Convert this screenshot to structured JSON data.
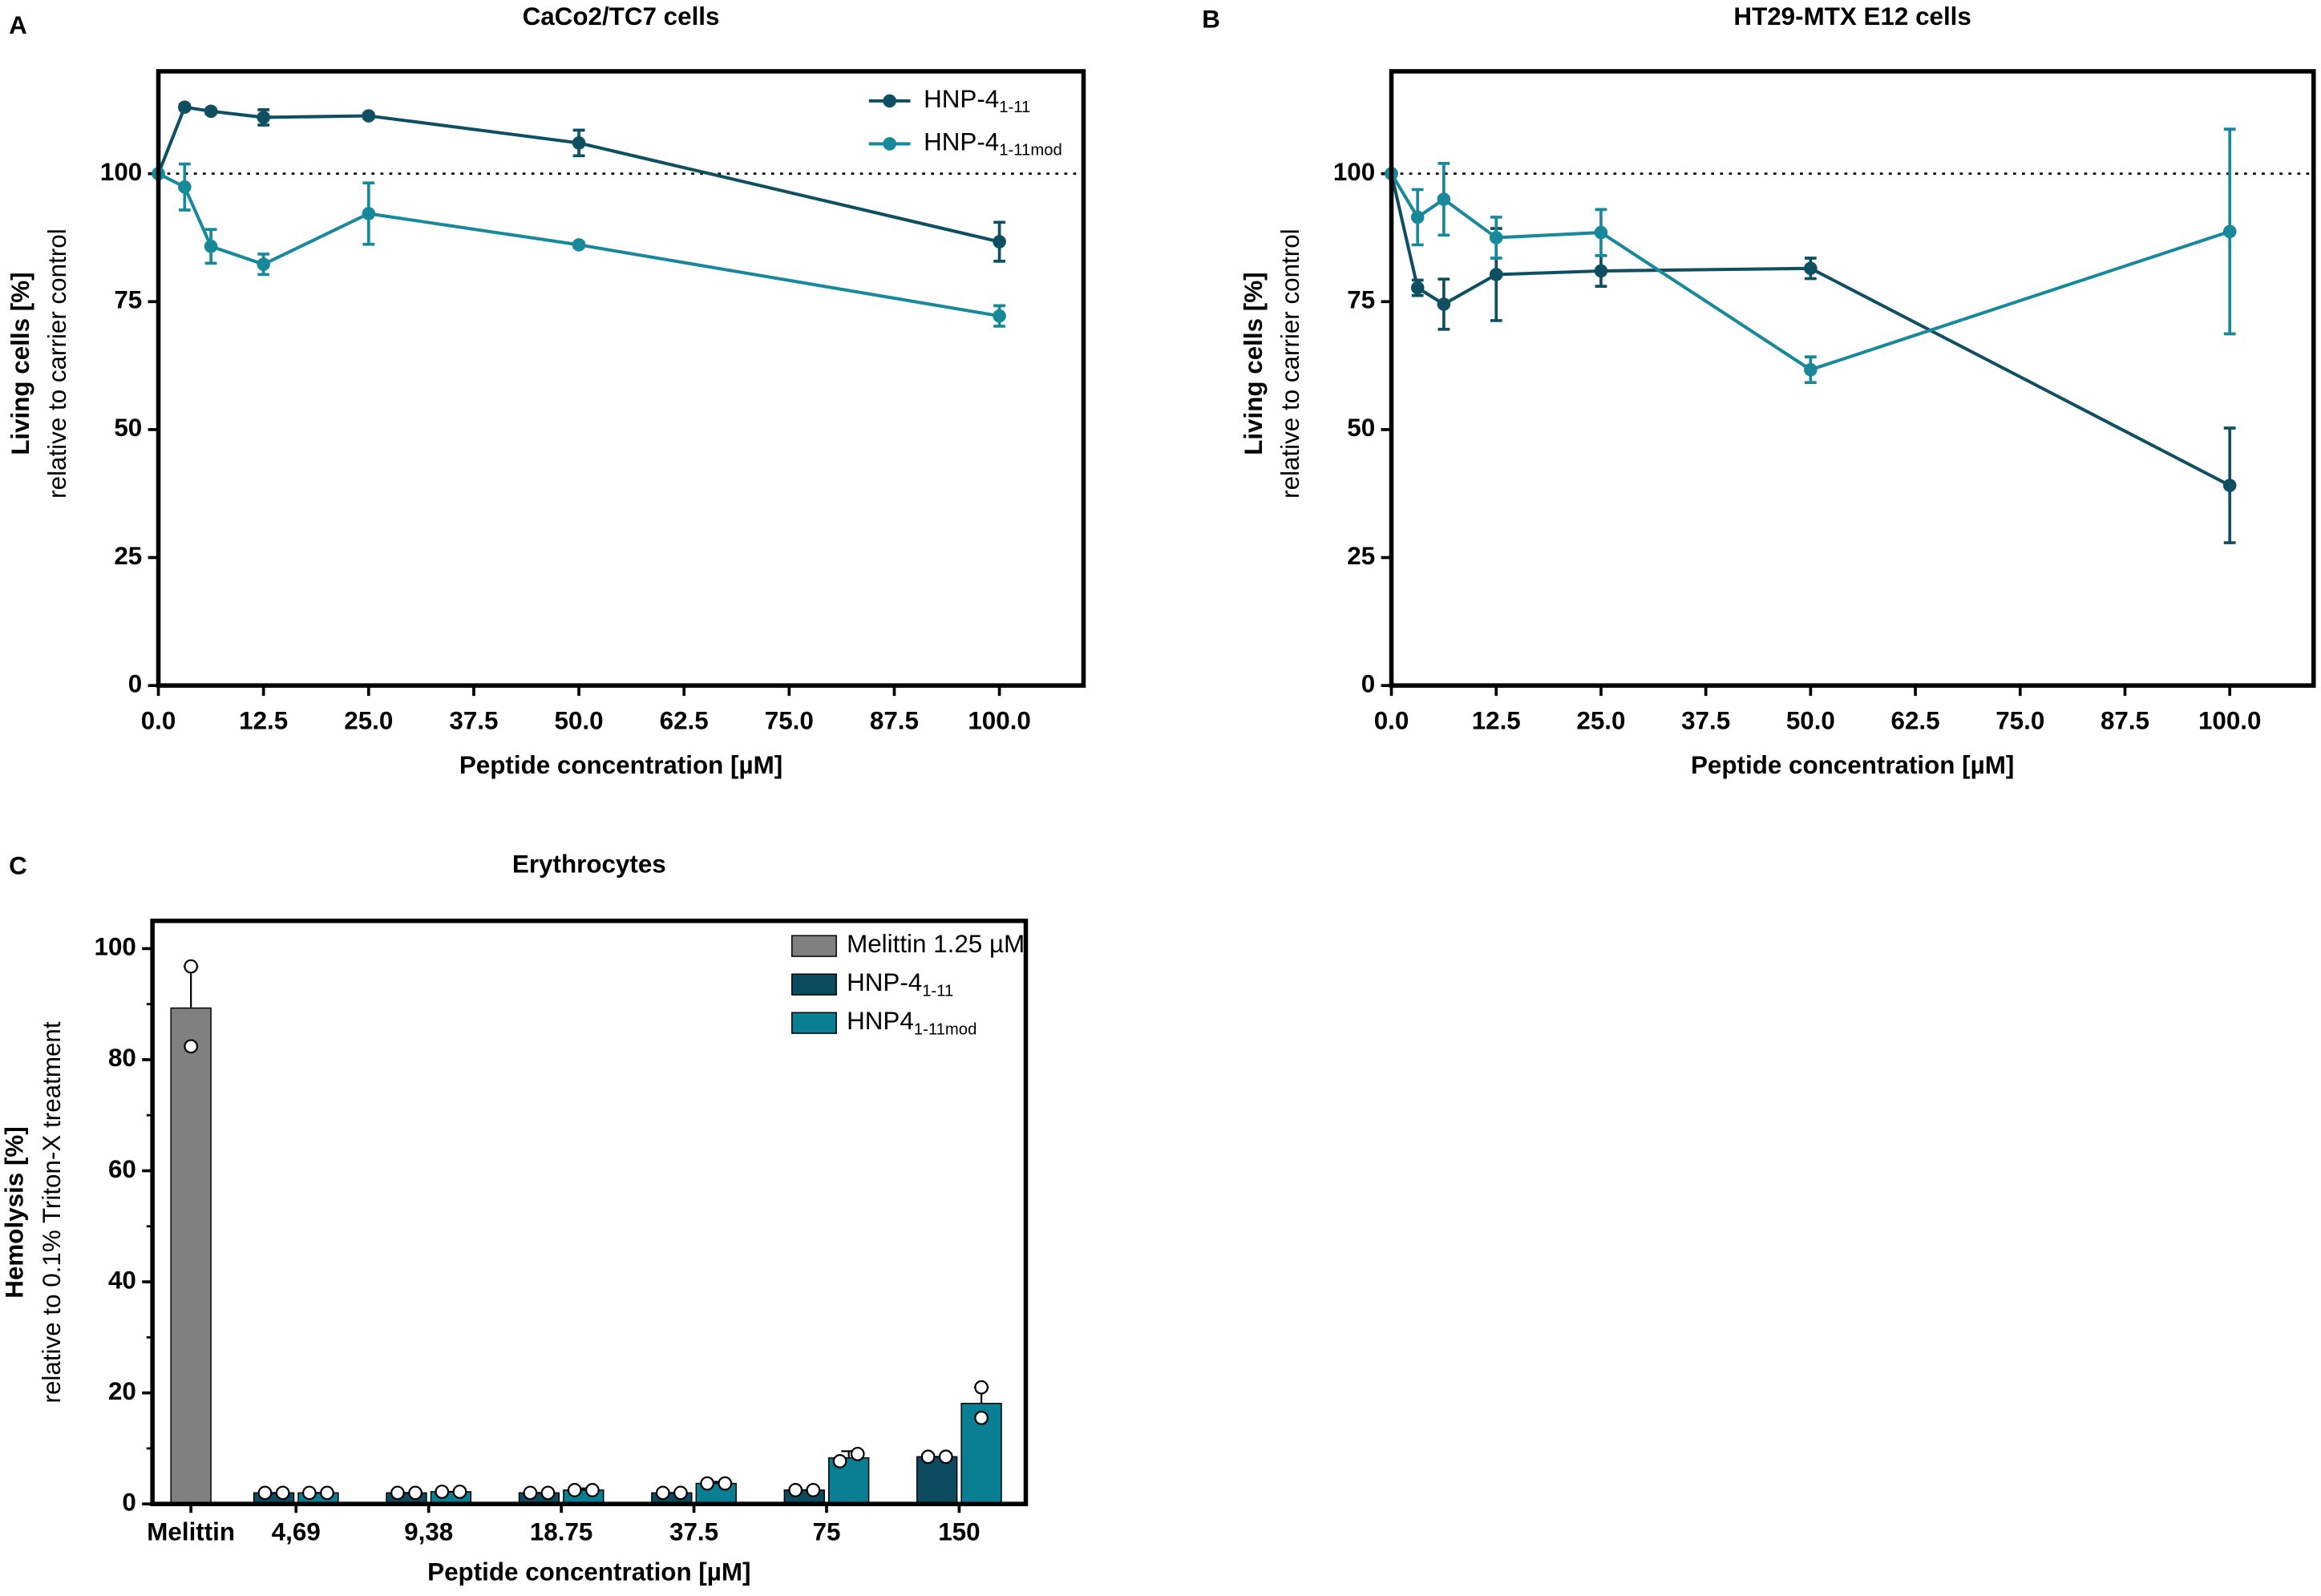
{
  "chart_data": [
    {
      "type": "line",
      "panel_label": "A",
      "title": "CaCo2/TC7 cells",
      "xlabel": "Peptide concentration [µM]",
      "ylabel": "Living cells [%]",
      "ylabel_sub": "relative to carrier control",
      "x": [
        0,
        3.125,
        6.25,
        12.5,
        25,
        50,
        100
      ],
      "series": [
        {
          "name": "HNP-4",
          "subscript": "1-11",
          "color": "#0f4f62",
          "values": [
            100,
            113,
            112.2,
            111,
            111.3,
            106,
            86.7
          ],
          "errors": [
            0,
            0.5,
            0.5,
            1.5,
            0.5,
            2.5,
            3.8
          ]
        },
        {
          "name": "HNP-4",
          "subscript": "1-11mod",
          "color": "#18899b",
          "values": [
            100,
            97.4,
            85.8,
            82.3,
            92.2,
            86.1,
            72.2
          ],
          "errors": [
            0,
            4.5,
            3.3,
            2,
            6,
            0.5,
            2
          ]
        }
      ],
      "xlim": [
        0,
        110
      ],
      "xticks": [
        {
          "value": 0,
          "label": "0.0"
        },
        12.5,
        {
          "value": 25,
          "label": "25.0"
        },
        37.5,
        {
          "value": 50,
          "label": "50.0"
        },
        62.5,
        {
          "value": 75,
          "label": "75.0"
        },
        87.5,
        {
          "value": 100,
          "label": "100.0"
        }
      ],
      "ylim": [
        0,
        120
      ],
      "yticks": [
        0,
        25,
        50,
        75,
        100
      ],
      "reference_line": 100,
      "legend": "upper right"
    },
    {
      "type": "line",
      "panel_label": "B",
      "title": "HT29-MTX E12 cells",
      "xlabel": "Peptide concentration [µM]",
      "ylabel": "Living cells [%]",
      "ylabel_sub": "relative to carrier control",
      "x": [
        0,
        3.125,
        6.25,
        12.5,
        25,
        50,
        100
      ],
      "series": [
        {
          "color": "#0f4f62",
          "values": [
            100,
            77.7,
            74.5,
            80.3,
            81,
            81.5,
            39.1
          ],
          "errors": [
            0,
            1.5,
            4.9,
            9,
            3,
            2,
            11.2
          ]
        },
        {
          "color": "#18899b",
          "values": [
            100,
            91.5,
            95,
            87.5,
            88.5,
            61.7,
            88.7
          ],
          "errors": [
            0,
            5.4,
            7,
            4,
            4.5,
            2.5,
            20
          ]
        }
      ],
      "xlim": [
        0,
        110
      ],
      "xticks": [
        {
          "value": 0,
          "label": "0.0"
        },
        12.5,
        {
          "value": 25,
          "label": "25.0"
        },
        37.5,
        {
          "value": 50,
          "label": "50.0"
        },
        62.5,
        {
          "value": 75,
          "label": "75.0"
        },
        87.5,
        {
          "value": 100,
          "label": "100.0"
        }
      ],
      "ylim": [
        0,
        120
      ],
      "yticks": [
        0,
        25,
        50,
        75,
        100
      ],
      "reference_line": 100
    },
    {
      "type": "bar",
      "panel_label": "C",
      "title": "Erythrocytes",
      "xlabel": "Peptide concentration [µM]",
      "ylabel": "Hemolysis [%]",
      "ylabel_sub": "relative to 0.1% Triton-X treatment",
      "categories": [
        "Melittin",
        "4,69",
        "9,38",
        "18.75",
        "37.5",
        "75",
        "150"
      ],
      "series": [
        {
          "name": "Melittin 1.25 µM",
          "color": "#808080",
          "values": [
            89.3,
            null,
            null,
            null,
            null,
            null,
            null
          ],
          "errors": [
            7.5,
            null,
            null,
            null,
            null,
            null,
            null
          ],
          "replicates": [
            [
              96.8,
              82.4
            ],
            null,
            null,
            null,
            null,
            null,
            null
          ]
        },
        {
          "name": "HNP-4",
          "subscript": "1-11",
          "color": "#0c4b5f",
          "values": [
            null,
            2,
            2,
            2,
            2,
            2.5,
            8.5
          ],
          "errors": [
            null,
            0,
            0,
            0,
            0,
            0,
            0
          ],
          "replicates": [
            null,
            [
              2,
              2
            ],
            [
              2,
              2
            ],
            [
              2,
              2
            ],
            [
              2,
              2
            ],
            [
              2.5,
              2.5
            ],
            [
              8.5,
              8.5
            ]
          ]
        },
        {
          "name": "HNP4",
          "subscript": "1-11mod",
          "color": "#0a7e93",
          "values": [
            null,
            2,
            2.2,
            2.5,
            3.7,
            8.3,
            18.1
          ],
          "errors": [
            null,
            0,
            0,
            0.3,
            0.3,
            1.2,
            2.9
          ],
          "replicates": [
            null,
            [
              2,
              2
            ],
            [
              2.2,
              2.2
            ],
            [
              2.5,
              2.5
            ],
            [
              3.7,
              3.7
            ],
            [
              7.7,
              9
            ],
            [
              15.5,
              21
            ]
          ]
        }
      ],
      "ylim": [
        0,
        105
      ],
      "yticks": [
        0,
        20,
        40,
        60,
        80,
        100
      ],
      "yminor": [
        10,
        30,
        50,
        70,
        90
      ],
      "legend": "upper right"
    }
  ]
}
